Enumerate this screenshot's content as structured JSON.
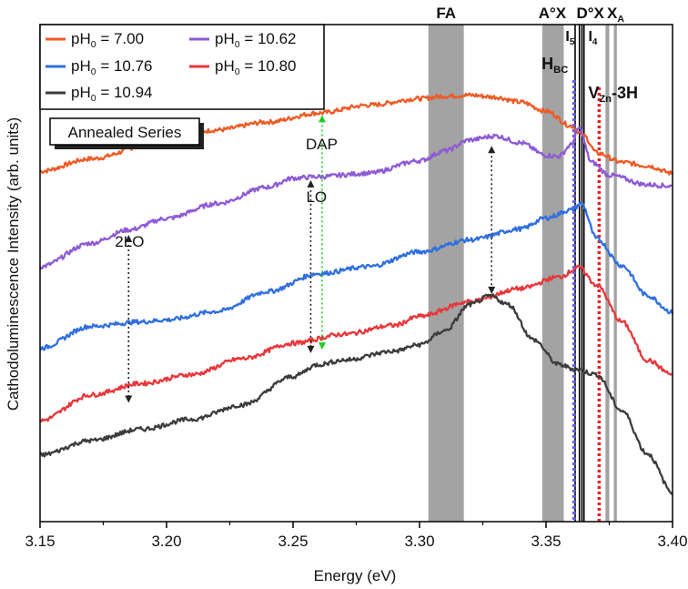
{
  "chart_data": {
    "type": "line",
    "title": "",
    "xlabel": "Energy (eV)",
    "ylabel": "Cathodoluminescence Intensity (arb. units)",
    "xlim": [
      3.15,
      3.4
    ],
    "ylim": [
      0,
      100
    ],
    "xticks": [
      3.15,
      3.2,
      3.25,
      3.3,
      3.35,
      3.4
    ],
    "xtick_labels": [
      "3.15",
      "3.20",
      "3.25",
      "3.30",
      "3.35",
      "3.40"
    ],
    "inset_label": "Annealed Series",
    "legend": {
      "position": "top-left",
      "entries": [
        {
          "label": "pH",
          "sub": "0",
          "value": " = 7.00",
          "color": "#ee5a24"
        },
        {
          "label": "pH",
          "sub": "0",
          "value": " = 10.62",
          "color": "#8e5ad6"
        },
        {
          "label": "pH",
          "sub": "0",
          "value": " = 10.76",
          "color": "#2f6fe0"
        },
        {
          "label": "pH",
          "sub": "0",
          "value": " = 10.80",
          "color": "#e8363a"
        },
        {
          "label": "pH",
          "sub": "0",
          "value": " = 10.94",
          "color": "#3c3c3c"
        }
      ]
    },
    "series": [
      {
        "name": "pH0 = 7.00",
        "color": "#ee5a24",
        "points": [
          [
            3.15,
            70.5
          ],
          [
            3.17,
            73
          ],
          [
            3.2,
            77
          ],
          [
            3.22,
            78.8
          ],
          [
            3.24,
            80.4
          ],
          [
            3.26,
            82.2
          ],
          [
            3.28,
            83.8
          ],
          [
            3.3,
            85.1
          ],
          [
            3.31,
            85.6
          ],
          [
            3.32,
            85.8
          ],
          [
            3.33,
            85.4
          ],
          [
            3.34,
            84.4
          ],
          [
            3.35,
            82.6
          ],
          [
            3.36,
            79.6
          ],
          [
            3.365,
            77.6
          ],
          [
            3.37,
            74.2
          ],
          [
            3.38,
            72.3
          ],
          [
            3.39,
            71.6
          ],
          [
            3.4,
            70.1
          ]
        ]
      },
      {
        "name": "pH0 = 10.62",
        "color": "#8e5ad6",
        "points": [
          [
            3.15,
            51.3
          ],
          [
            3.17,
            56
          ],
          [
            3.185,
            58.7
          ],
          [
            3.2,
            61
          ],
          [
            3.22,
            64
          ],
          [
            3.24,
            67.3
          ],
          [
            3.25,
            69.1
          ],
          [
            3.26,
            69.4
          ],
          [
            3.28,
            70.1
          ],
          [
            3.3,
            72.6
          ],
          [
            3.31,
            74.6
          ],
          [
            3.32,
            76.8
          ],
          [
            3.33,
            77.6
          ],
          [
            3.34,
            76.2
          ],
          [
            3.35,
            73.7
          ],
          [
            3.355,
            73.5
          ],
          [
            3.36,
            75.8
          ],
          [
            3.363,
            79.2
          ],
          [
            3.368,
            72.3
          ],
          [
            3.375,
            69.7
          ],
          [
            3.39,
            67.8
          ],
          [
            3.4,
            67.5
          ]
        ]
      },
      {
        "name": "pH0 = 10.76",
        "color": "#2f6fe0",
        "points": [
          [
            3.15,
            34.9
          ],
          [
            3.17,
            39.3
          ],
          [
            3.19,
            40.2
          ],
          [
            3.2,
            40.6
          ],
          [
            3.22,
            42.3
          ],
          [
            3.24,
            46.3
          ],
          [
            3.26,
            49.9
          ],
          [
            3.28,
            51.3
          ],
          [
            3.3,
            54.3
          ],
          [
            3.32,
            56.7
          ],
          [
            3.34,
            58.9
          ],
          [
            3.35,
            61.1
          ],
          [
            3.36,
            62.7
          ],
          [
            3.364,
            64
          ],
          [
            3.37,
            56.9
          ],
          [
            3.38,
            51.5
          ],
          [
            3.39,
            45.5
          ],
          [
            3.4,
            42.1
          ]
        ]
      },
      {
        "name": "pH0 = 10.80",
        "color": "#e8363a",
        "points": [
          [
            3.15,
            20.3
          ],
          [
            3.17,
            25.5
          ],
          [
            3.19,
            27.8
          ],
          [
            3.21,
            29.6
          ],
          [
            3.23,
            32.8
          ],
          [
            3.25,
            35.9
          ],
          [
            3.27,
            37.7
          ],
          [
            3.29,
            39.5
          ],
          [
            3.3,
            41.3
          ],
          [
            3.32,
            44.3
          ],
          [
            3.34,
            46.9
          ],
          [
            3.355,
            49.2
          ],
          [
            3.363,
            51.1
          ],
          [
            3.37,
            47.6
          ],
          [
            3.38,
            40.2
          ],
          [
            3.39,
            32.5
          ],
          [
            3.4,
            29.6
          ]
        ]
      },
      {
        "name": "pH0 = 10.94",
        "color": "#3c3c3c",
        "points": [
          [
            3.15,
            13.4
          ],
          [
            3.17,
            16.3
          ],
          [
            3.19,
            18.6
          ],
          [
            3.21,
            20.6
          ],
          [
            3.23,
            23.5
          ],
          [
            3.25,
            29.2
          ],
          [
            3.26,
            31.6
          ],
          [
            3.27,
            32.5
          ],
          [
            3.29,
            34.3
          ],
          [
            3.3,
            35.6
          ],
          [
            3.31,
            38.4
          ],
          [
            3.32,
            43.7
          ],
          [
            3.328,
            45.4
          ],
          [
            3.335,
            43.7
          ],
          [
            3.345,
            36.6
          ],
          [
            3.355,
            31.6
          ],
          [
            3.362,
            30.6
          ],
          [
            3.37,
            29.6
          ],
          [
            3.38,
            22.3
          ],
          [
            3.39,
            13.7
          ],
          [
            3.4,
            5.9
          ]
        ]
      }
    ],
    "bands": [
      {
        "label": "FA",
        "x0": 3.3035,
        "x1": 3.3175
      },
      {
        "label": "A°X",
        "x0": 3.3485,
        "x1": 3.357
      },
      {
        "label": "",
        "x0": 3.3735,
        "x1": 3.375
      },
      {
        "label": "",
        "x0": 3.3768,
        "x1": 3.378
      }
    ],
    "lines": [
      {
        "label": "I",
        "sub": "5",
        "x": 3.3615
      },
      {
        "label": "",
        "sub": "",
        "x": 3.3632
      },
      {
        "label": "D°X",
        "sub": "",
        "x": 3.3642
      },
      {
        "label": "I",
        "sub": "4",
        "x": 3.365
      }
    ],
    "band_labels": {
      "fa": "FA",
      "ax": "A°X",
      "dx": "D°X",
      "xa": "X",
      "xa_sub": "A"
    },
    "dotted_markers": [
      {
        "label": "H",
        "sub": "BC",
        "x": 3.361,
        "color": "#6a5cff"
      },
      {
        "label": "V",
        "sub": "Zn",
        "suffix": "-3H",
        "x": 3.371,
        "color": "#ee1c24"
      }
    ],
    "annotations": [
      {
        "label": "2LO",
        "x": 3.185,
        "y_top": 57.7,
        "y_bottom": 23.9,
        "color": "#222222"
      },
      {
        "label": "LO",
        "x": 3.257,
        "y_top": 68.7,
        "y_bottom": 33.9,
        "color": "#222222"
      },
      {
        "label": "DAP",
        "x": 3.2615,
        "y_top": 81.8,
        "y_bottom": 34.6,
        "color": "#22cc22"
      },
      {
        "label": "",
        "x": 3.3285,
        "y_top": 75.6,
        "y_bottom": 45.8,
        "color": "#222222"
      }
    ]
  }
}
